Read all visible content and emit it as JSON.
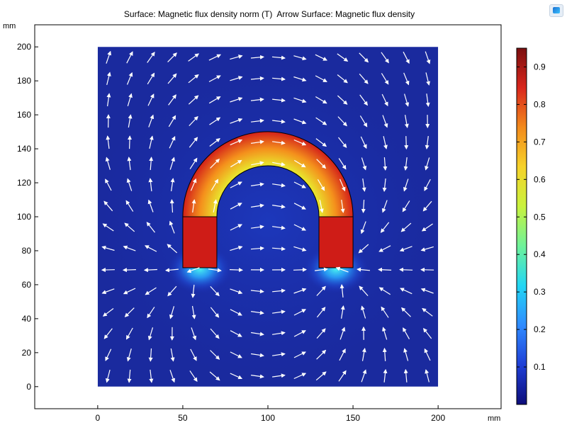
{
  "chart_data": {
    "type": "heatmap",
    "title": "Surface: Magnetic flux density norm (T)  Arrow Surface: Magnetic flux density",
    "x_unit": "mm",
    "y_unit": "mm",
    "xlim": [
      -37,
      237
    ],
    "ylim": [
      -13,
      213
    ],
    "x_ticks": [
      "0",
      "50",
      "100",
      "150",
      "200"
    ],
    "y_ticks": [
      "0",
      "20",
      "40",
      "60",
      "80",
      "100",
      "120",
      "140",
      "160",
      "180",
      "200"
    ],
    "domain": {
      "x": [
        0,
        200
      ],
      "y": [
        0,
        200
      ]
    },
    "magnet": {
      "arch_center": [
        100,
        100
      ],
      "inner_radius": 30,
      "outer_radius": 50,
      "left_leg": {
        "x": [
          50,
          70
        ],
        "y": [
          70,
          100
        ]
      },
      "right_leg": {
        "x": [
          130,
          150
        ],
        "y": [
          70,
          100
        ]
      }
    },
    "colorbar": {
      "min": 0.0,
      "max": 0.95,
      "ticks": [
        "0.1",
        "0.2",
        "0.3",
        "0.4",
        "0.5",
        "0.6",
        "0.7",
        "0.8",
        "0.9"
      ],
      "tick_values": [
        0.1,
        0.2,
        0.3,
        0.4,
        0.5,
        0.6,
        0.7,
        0.8,
        0.9
      ],
      "colors": [
        "#0d0d7a",
        "#1f3fd6",
        "#2f8bff",
        "#22d6f4",
        "#6ef29a",
        "#c9f23d",
        "#f6d22a",
        "#f28a1c",
        "#d9261c",
        "#7a0f0f"
      ]
    },
    "grid": false,
    "colormap": "rainbow"
  },
  "toolbar": {
    "icon": "graphics-icon"
  }
}
